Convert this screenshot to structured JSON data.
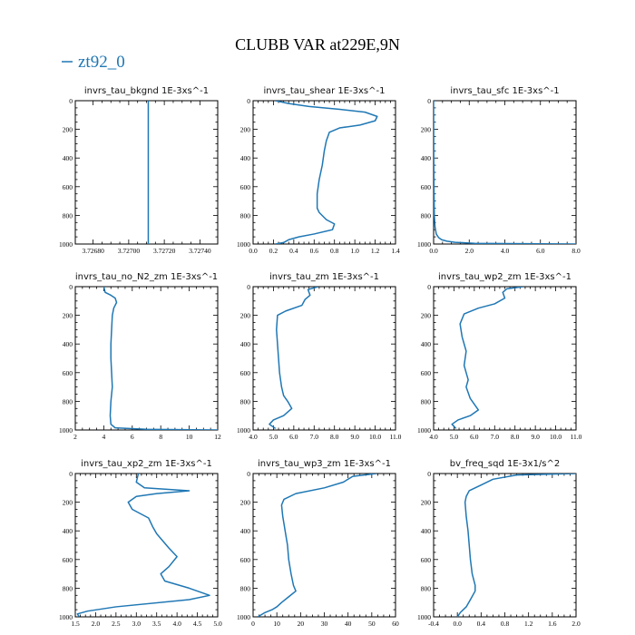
{
  "figure": {
    "title": "CLUBB VAR at229E,9N",
    "legend": {
      "label": "zt92_0",
      "color": "#1f77b4"
    },
    "line_color": "#1f77b4"
  },
  "chart_data": [
    {
      "type": "line",
      "title": "invrs_tau_bkgnd   1E-3xs^-1",
      "xlim": [
        3.7267,
        3.7275
      ],
      "xticks": [
        3.7268,
        3.727,
        3.7272,
        3.7274
      ],
      "xtick_labels": [
        "3.72680",
        "3.72700",
        "3.72720",
        "3.72740"
      ],
      "ylim": [
        0,
        1000
      ],
      "yticks": [
        0,
        200,
        400,
        600,
        800,
        1000
      ],
      "y_inverted": true,
      "series": [
        {
          "x": [
            3.72711,
            3.72711
          ],
          "y": [
            0,
            1000
          ]
        }
      ]
    },
    {
      "type": "line",
      "title": "invrs_tau_shear   1E-3xs^-1",
      "xlim": [
        0.0,
        1.4
      ],
      "xticks": [
        0.0,
        0.2,
        0.4,
        0.6,
        0.8,
        1.0,
        1.2,
        1.4
      ],
      "xtick_labels": [
        "0.0",
        "0.2",
        "0.4",
        "0.6",
        "0.8",
        "1.0",
        "1.2",
        "1.4"
      ],
      "ylim": [
        0,
        1000
      ],
      "yticks": [
        0,
        200,
        400,
        600,
        800,
        1000
      ],
      "y_inverted": true,
      "series": [
        {
          "x": [
            0.22,
            0.35,
            0.55,
            0.85,
            1.1,
            1.22,
            1.2,
            1.05,
            0.85,
            0.75,
            0.72,
            0.7,
            0.68,
            0.65,
            0.63,
            0.63,
            0.65,
            0.72,
            0.8,
            0.78,
            0.6,
            0.45,
            0.35,
            0.3,
            0.22
          ],
          "y": [
            0,
            20,
            40,
            60,
            80,
            110,
            140,
            170,
            190,
            220,
            280,
            350,
            450,
            550,
            650,
            750,
            780,
            830,
            860,
            900,
            930,
            950,
            970,
            990,
            1000
          ]
        }
      ]
    },
    {
      "type": "line",
      "title": "invrs_tau_sfc   1E-3xs^-1",
      "xlim": [
        0.0,
        8.0
      ],
      "xticks": [
        0.0,
        2.0,
        4.0,
        6.0,
        8.0
      ],
      "xtick_labels": [
        "0.0",
        "2.0",
        "4.0",
        "6.0",
        "8.0"
      ],
      "ylim": [
        0,
        1000
      ],
      "yticks": [
        0,
        200,
        400,
        600,
        800,
        1000
      ],
      "y_inverted": true,
      "series": [
        {
          "x": [
            0.0,
            0.005,
            0.01,
            0.02,
            0.04,
            0.08,
            0.15,
            0.28,
            0.45,
            0.75,
            1.2,
            2.3,
            8.0
          ],
          "y": [
            0,
            200,
            400,
            600,
            800,
            880,
            930,
            955,
            970,
            980,
            988,
            995,
            1000
          ]
        }
      ]
    },
    {
      "type": "line",
      "title": "invrs_tau_no_N2_zm   1E-3xs^-1",
      "xlim": [
        2,
        12
      ],
      "xticks": [
        2,
        4,
        6,
        8,
        10,
        12
      ],
      "xtick_labels": [
        "2",
        "4",
        "6",
        "8",
        "10",
        "12"
      ],
      "ylim": [
        0,
        1000
      ],
      "yticks": [
        0,
        200,
        400,
        600,
        800,
        1000
      ],
      "y_inverted": true,
      "series": [
        {
          "x": [
            4.0,
            4.1,
            4.5,
            4.8,
            4.9,
            4.7,
            4.6,
            4.55,
            4.5,
            4.5,
            4.55,
            4.6,
            4.5,
            4.45,
            4.5,
            4.8,
            7.0,
            12.0
          ],
          "y": [
            0,
            40,
            60,
            80,
            110,
            150,
            200,
            300,
            400,
            500,
            600,
            700,
            800,
            900,
            960,
            985,
            995,
            1000
          ]
        }
      ]
    },
    {
      "type": "line",
      "title": "invrs_tau_zm   1E-3xs^-1",
      "xlim": [
        4.0,
        11.0
      ],
      "xticks": [
        4.0,
        5.0,
        6.0,
        7.0,
        8.0,
        9.0,
        10.0,
        11.0
      ],
      "xtick_labels": [
        "4.0",
        "5.0",
        "6.0",
        "7.0",
        "8.0",
        "9.0",
        "10.0",
        "11.0"
      ],
      "ylim": [
        0,
        1000
      ],
      "yticks": [
        0,
        200,
        400,
        600,
        800,
        1000
      ],
      "y_inverted": true,
      "series": [
        {
          "x": [
            7.2,
            6.7,
            6.8,
            6.55,
            6.4,
            5.6,
            5.2,
            5.15,
            5.2,
            5.25,
            5.3,
            5.4,
            5.5,
            5.7,
            5.9,
            5.5,
            5.0,
            4.8,
            5.1
          ],
          "y": [
            0,
            20,
            60,
            90,
            130,
            170,
            200,
            300,
            400,
            500,
            600,
            700,
            760,
            800,
            850,
            900,
            930,
            960,
            990
          ]
        }
      ]
    },
    {
      "type": "line",
      "title": "invrs_tau_wp2_zm   1E-3xs^-1",
      "xlim": [
        4.0,
        11.0
      ],
      "xticks": [
        4.0,
        5.0,
        6.0,
        7.0,
        8.0,
        9.0,
        10.0,
        11.0
      ],
      "xtick_labels": [
        "4.0",
        "5.0",
        "6.0",
        "7.0",
        "8.0",
        "9.0",
        "10.0",
        "11.0"
      ],
      "ylim": [
        0,
        1000
      ],
      "yticks": [
        0,
        200,
        400,
        600,
        800,
        1000
      ],
      "y_inverted": true,
      "series": [
        {
          "x": [
            8.4,
            7.6,
            7.4,
            7.5,
            7.0,
            6.2,
            5.5,
            5.3,
            5.4,
            5.6,
            5.5,
            5.7,
            5.6,
            5.8,
            6.2,
            5.8,
            5.2,
            4.9,
            5.1
          ],
          "y": [
            0,
            15,
            40,
            80,
            120,
            150,
            190,
            260,
            350,
            450,
            550,
            650,
            700,
            780,
            860,
            900,
            930,
            960,
            990
          ]
        }
      ]
    },
    {
      "type": "line",
      "title": "invrs_tau_xp2_zm   1E-3xs^-1",
      "xlim": [
        1.5,
        5.0
      ],
      "xticks": [
        1.5,
        2.0,
        2.5,
        3.0,
        3.5,
        4.0,
        4.5,
        5.0
      ],
      "xtick_labels": [
        "1.5",
        "2.0",
        "2.5",
        "3.0",
        "3.5",
        "4.0",
        "4.5",
        "5.0"
      ],
      "ylim": [
        0,
        1000
      ],
      "yticks": [
        0,
        200,
        400,
        600,
        800,
        1000
      ],
      "y_inverted": true,
      "series": [
        {
          "x": [
            3.05,
            3.0,
            3.2,
            4.3,
            3.5,
            3.0,
            2.8,
            2.9,
            3.3,
            3.4,
            3.5,
            3.8,
            4.0,
            3.8,
            3.6,
            3.7,
            4.3,
            4.8,
            4.3,
            2.5,
            1.8,
            1.55,
            1.6
          ],
          "y": [
            0,
            60,
            100,
            120,
            140,
            160,
            200,
            250,
            310,
            370,
            420,
            520,
            580,
            650,
            700,
            750,
            800,
            850,
            880,
            930,
            960,
            980,
            1000
          ]
        }
      ]
    },
    {
      "type": "line",
      "title": "invrs_tau_wp3_zm   1E-3xs^-1",
      "xlim": [
        0,
        60
      ],
      "xticks": [
        0,
        10,
        20,
        30,
        40,
        50,
        60
      ],
      "xtick_labels": [
        "0",
        "10",
        "20",
        "30",
        "40",
        "50",
        "60"
      ],
      "ylim": [
        0,
        1000
      ],
      "yticks": [
        0,
        200,
        400,
        600,
        800,
        1000
      ],
      "y_inverted": true,
      "series": [
        {
          "x": [
            52,
            42,
            38,
            30,
            18,
            13,
            12,
            12.5,
            13,
            13.5,
            14,
            14.5,
            15,
            16,
            17,
            18,
            15,
            12,
            10,
            8,
            5,
            3,
            2
          ],
          "y": [
            0,
            20,
            60,
            100,
            140,
            180,
            220,
            300,
            350,
            400,
            450,
            500,
            600,
            700,
            780,
            820,
            860,
            900,
            930,
            950,
            970,
            990,
            1000
          ]
        }
      ]
    },
    {
      "type": "line",
      "title": "bv_freq_sqd   1E-3x1/s^2",
      "xlim": [
        -0.4,
        2.0
      ],
      "xticks": [
        -0.4,
        0.0,
        0.4,
        0.8,
        1.2,
        1.6,
        2.0
      ],
      "xtick_labels": [
        "-0.4",
        "0.0",
        "0.4",
        "0.8",
        "1.2",
        "1.6",
        "2.0"
      ],
      "ylim": [
        0,
        1000
      ],
      "yticks": [
        0,
        200,
        400,
        600,
        800,
        1000
      ],
      "y_inverted": true,
      "series": [
        {
          "x": [
            2.0,
            1.0,
            0.6,
            0.4,
            0.2,
            0.15,
            0.13,
            0.15,
            0.18,
            0.2,
            0.22,
            0.25,
            0.3,
            0.3,
            0.22,
            0.15,
            0.05,
            0.0
          ],
          "y": [
            0,
            10,
            40,
            80,
            120,
            160,
            200,
            300,
            400,
            500,
            600,
            700,
            780,
            820,
            880,
            930,
            970,
            1000
          ]
        }
      ]
    }
  ]
}
